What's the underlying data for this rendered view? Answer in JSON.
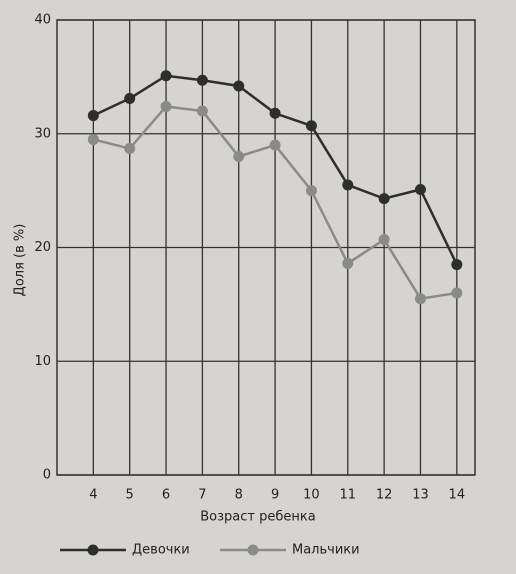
{
  "chart_data": {
    "type": "line",
    "x_label": "Возраст ребенка",
    "y_label": "Доля (в %)",
    "x": [
      4,
      5,
      6,
      7,
      8,
      9,
      10,
      11,
      12,
      13,
      14
    ],
    "series": [
      {
        "name": "Девочки",
        "color": "#2e2e2e",
        "values": [
          31.6,
          33.1,
          35.1,
          34.7,
          34.2,
          31.8,
          30.7,
          25.5,
          24.3,
          25.1,
          18.5
        ]
      },
      {
        "name": "Мальчики",
        "color": "#8a8a8a",
        "values": [
          29.5,
          28.7,
          32.4,
          32.0,
          28.0,
          29.0,
          25.0,
          18.6,
          20.7,
          15.5,
          16.0
        ]
      }
    ],
    "xlim": [
      3,
      14.5
    ],
    "xticks": [
      4,
      5,
      6,
      7,
      8,
      9,
      10,
      11,
      12,
      13,
      14
    ],
    "ylim": [
      0,
      40
    ],
    "yticks": [
      0,
      10,
      20,
      30,
      40
    ],
    "grid": true
  }
}
